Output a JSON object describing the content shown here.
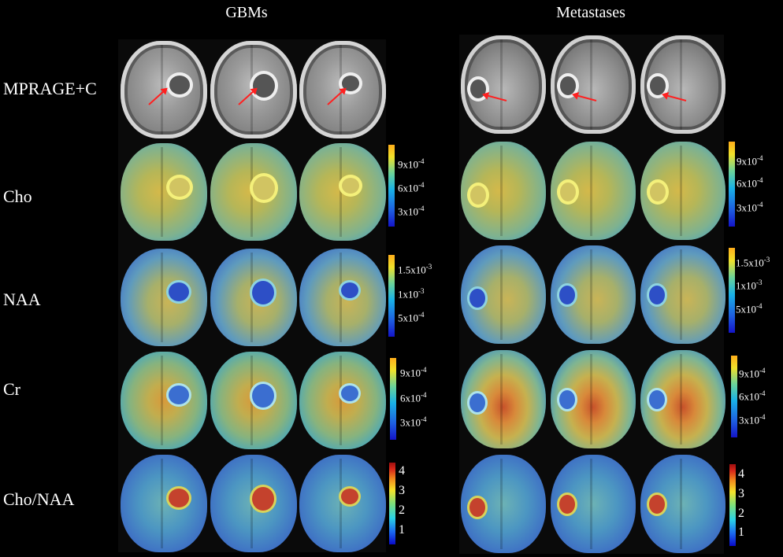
{
  "groups": {
    "left": "GBMs",
    "right": "Metastases"
  },
  "rows": [
    "MPRAGE+C",
    "Cho",
    "NAA",
    "Cr",
    "Cho/NAA"
  ],
  "colorbars": {
    "cho": [
      "9x10",
      "6x10",
      "3x10"
    ],
    "cho_exp": [
      "-4",
      "-4",
      "-4"
    ],
    "naa": [
      "1.5x10",
      "1x10",
      "5x10"
    ],
    "naa_exp": [
      "-3",
      "-3",
      "-4"
    ],
    "cr": [
      "9x10",
      "6x10",
      "3x10"
    ],
    "cr_exp": [
      "-4",
      "-4",
      "-4"
    ],
    "ratio": [
      "4",
      "3",
      "2",
      "1"
    ]
  },
  "colors": {
    "arrow": "#ff2020",
    "background": "#000000"
  }
}
